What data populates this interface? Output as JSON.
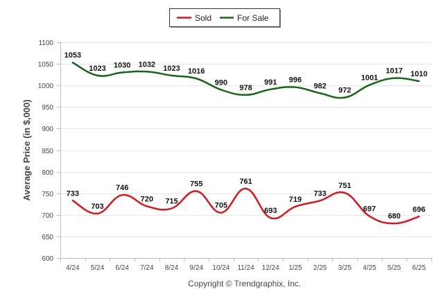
{
  "chart_data": {
    "type": "line",
    "ylabel": "Average Price (in $,000)",
    "xlabel": "",
    "ylim": [
      600,
      1100
    ],
    "yticks": [
      600,
      650,
      700,
      750,
      800,
      850,
      900,
      950,
      1000,
      1050,
      1100
    ],
    "grid": true,
    "legend_position": "top-center",
    "categories": [
      "4/24",
      "5/24",
      "6/24",
      "7/24",
      "8/24",
      "9/24",
      "10/24",
      "11/24",
      "12/24",
      "1/25",
      "2/25",
      "3/25",
      "4/25",
      "5/25",
      "6/25"
    ],
    "series": [
      {
        "name": "Sold",
        "color": "#e0121b",
        "values": [
          733,
          703,
          746,
          720,
          715,
          755,
          705,
          761,
          693,
          719,
          733,
          751,
          697,
          680,
          696
        ]
      },
      {
        "name": "For Sale",
        "color": "#146614",
        "values": [
          1053,
          1023,
          1030,
          1032,
          1023,
          1016,
          990,
          978,
          991,
          996,
          982,
          972,
          1001,
          1017,
          1010
        ]
      }
    ]
  },
  "footer": {
    "copyright": "Copyright © Trendgraphix, Inc."
  }
}
